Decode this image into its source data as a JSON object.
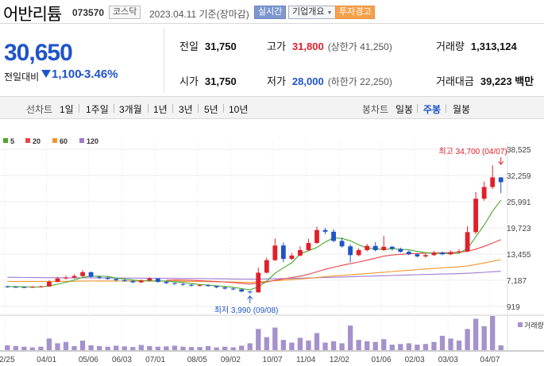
{
  "header": {
    "stock_name": "어반리튬",
    "stock_code": "073570",
    "market": "코스닥",
    "date_note": "2023.04.11 기준(장마감)",
    "live_btn": "실시간",
    "info_btn": "기업개요",
    "warn_badge": "투자경고"
  },
  "price": {
    "current": "30,650",
    "change_label": "전일대비",
    "change": "1,100",
    "change_pct": "-3.46%",
    "fields": {
      "prev": {
        "label": "전일",
        "value": "31,750"
      },
      "high": {
        "label": "고가",
        "value": "31,800",
        "sub": "(상한가 41,250)"
      },
      "volume": {
        "label": "거래량",
        "value": "1,313,124"
      },
      "open": {
        "label": "시가",
        "value": "31,750"
      },
      "low": {
        "label": "저가",
        "value": "28,000",
        "sub": "(하한가 22,250)"
      },
      "amount": {
        "label": "거래대금",
        "value": "39,223 백만"
      }
    }
  },
  "tabs": {
    "line_label": "선차트",
    "line_periods": [
      "1일",
      "1주일",
      "3개월",
      "1년",
      "3년",
      "5년",
      "10년"
    ],
    "candle_label": "봉차트",
    "candle_periods": [
      "일봉",
      "주봉",
      "월봉"
    ],
    "candle_active": "주봉"
  },
  "colors": {
    "up": "#e0202a",
    "down": "#1f54c9",
    "ma5": "#4aa82c",
    "ma20": "#e8464a",
    "ma60": "#f0962e",
    "ma120": "#a07ad0",
    "volume": "#a592cc"
  },
  "chart_data": {
    "type": "candlestick",
    "legend": [
      {
        "name": "5",
        "color": "#4aa82c"
      },
      {
        "name": "20",
        "color": "#e8464a"
      },
      {
        "name": "60",
        "color": "#f0962e"
      },
      {
        "name": "120",
        "color": "#a07ad0"
      }
    ],
    "y_ticks": [
      919,
      7187,
      13455,
      19723,
      25991,
      32259,
      38525
    ],
    "y_tick_labels": [
      "919",
      "7,187",
      "13,455",
      "19,723",
      "25,991",
      "32,259",
      "38,525"
    ],
    "ylim": [
      919,
      38525
    ],
    "x_labels": [
      "02/25",
      "04/01",
      "05/06",
      "06/03",
      "07/01",
      "08/05",
      "09/02",
      "10/07",
      "11/04",
      "12/02",
      "01/06",
      "02/03",
      "03/03",
      "04/07"
    ],
    "max_label": "최고 34,700 (04/07)",
    "min_label": "최저 3,990 (09/08)",
    "max_index": 59,
    "min_index": 29,
    "max_value": 34700,
    "min_value": 3990,
    "volume_label": "거래량",
    "candles": [
      [
        5700,
        5600,
        5900,
        5400
      ],
      [
        5600,
        5550,
        5800,
        5400
      ],
      [
        5550,
        5500,
        5700,
        5300
      ],
      [
        5500,
        5600,
        5800,
        5400
      ],
      [
        5600,
        5700,
        5900,
        5500
      ],
      [
        5700,
        6800,
        7200,
        5600
      ],
      [
        6800,
        7600,
        8000,
        6700
      ],
      [
        7600,
        7800,
        8300,
        7400
      ],
      [
        7800,
        8200,
        8600,
        7600
      ],
      [
        8200,
        9100,
        9600,
        8000
      ],
      [
        9100,
        8000,
        9300,
        7800
      ],
      [
        8000,
        7800,
        8200,
        7500
      ],
      [
        7800,
        7500,
        8000,
        7300
      ],
      [
        7500,
        7200,
        7700,
        6900
      ],
      [
        7200,
        7000,
        7500,
        6800
      ],
      [
        7000,
        6700,
        7200,
        6500
      ],
      [
        6700,
        7100,
        7400,
        6500
      ],
      [
        7100,
        7600,
        7900,
        6900
      ],
      [
        7600,
        6800,
        7700,
        6600
      ],
      [
        6800,
        6500,
        7000,
        6300
      ],
      [
        6500,
        6300,
        6700,
        6100
      ],
      [
        6300,
        6100,
        6500,
        5900
      ],
      [
        6100,
        5900,
        6300,
        5700
      ],
      [
        5900,
        6000,
        6200,
        5700
      ],
      [
        6000,
        5800,
        6200,
        5600
      ],
      [
        5800,
        5500,
        5900,
        5300
      ],
      [
        5500,
        5200,
        5600,
        5000
      ],
      [
        5200,
        5000,
        5400,
        4800
      ],
      [
        5000,
        4500,
        5100,
        4300
      ],
      [
        4500,
        4300,
        4600,
        3990
      ],
      [
        4300,
        9000,
        10200,
        4200
      ],
      [
        9000,
        12000,
        12600,
        8800
      ],
      [
        12000,
        15500,
        17200,
        11800
      ],
      [
        15500,
        12300,
        16200,
        11500
      ],
      [
        12300,
        13100,
        13700,
        12000
      ],
      [
        13100,
        14400,
        15300,
        12900
      ],
      [
        14400,
        16100,
        17100,
        14200
      ],
      [
        16100,
        19200,
        20000,
        15900
      ],
      [
        19200,
        18800,
        19700,
        18200
      ],
      [
        18800,
        16600,
        19400,
        16300
      ],
      [
        16600,
        15300,
        17400,
        15000
      ],
      [
        15300,
        13200,
        15800,
        11500
      ],
      [
        13200,
        14400,
        14800,
        12900
      ],
      [
        14400,
        15400,
        15900,
        14100
      ],
      [
        15400,
        14400,
        16300,
        14100
      ],
      [
        14400,
        15200,
        17800,
        14200
      ],
      [
        15200,
        14700,
        15400,
        14300
      ],
      [
        14700,
        14000,
        15000,
        13800
      ],
      [
        14000,
        13400,
        14300,
        13200
      ],
      [
        13400,
        12900,
        13700,
        12700
      ],
      [
        12900,
        13200,
        13500,
        12600
      ],
      [
        13200,
        13800,
        14200,
        13000
      ],
      [
        13800,
        13400,
        14100,
        13200
      ],
      [
        13400,
        13900,
        14300,
        13200
      ],
      [
        13900,
        14100,
        14600,
        13700
      ],
      [
        14100,
        18700,
        20100,
        13900
      ],
      [
        18700,
        26700,
        28300,
        18200
      ],
      [
        26700,
        29500,
        30800,
        26200
      ],
      [
        29500,
        31800,
        34700,
        29000
      ],
      [
        31800,
        30650,
        31800,
        28000
      ]
    ],
    "volumes": [
      0.14,
      0.12,
      0.1,
      0.08,
      0.1,
      0.34,
      0.2,
      0.24,
      0.12,
      0.28,
      0.14,
      0.12,
      0.1,
      0.13,
      0.11,
      0.09,
      0.15,
      0.12,
      0.1,
      0.11,
      0.13,
      0.1,
      0.09,
      0.09,
      0.12,
      0.08,
      0.1,
      0.08,
      0.13,
      0.2,
      0.62,
      0.38,
      0.66,
      0.3,
      0.22,
      0.36,
      0.28,
      0.5,
      0.22,
      0.26,
      0.2,
      0.72,
      0.3,
      0.26,
      0.24,
      0.32,
      0.16,
      0.18,
      0.2,
      0.16,
      0.18,
      0.24,
      0.42,
      0.34,
      0.28,
      0.62,
      0.92,
      0.7,
      1.0,
      0.14
    ],
    "ma5": [
      5700,
      5650,
      5620,
      5580,
      5590,
      5840,
      6240,
      6700,
      7260,
      7900,
      8140,
      8180,
      8100,
      7700,
      7500,
      7240,
      7100,
      7040,
      7040,
      6980,
      6840,
      6660,
      6380,
      6160,
      6020,
      5850,
      5720,
      5500,
      5200,
      4900,
      5600,
      6960,
      8860,
      10160,
      11380,
      13460,
      14280,
      15020,
      16320,
      17320,
      17200,
      16620,
      15660,
      14900,
      14740,
      14520,
      14740,
      14600,
      14460,
      14100,
      13780,
      13660,
      13550,
      13600,
      13650,
      14800,
      17580,
      20400,
      23700,
      26360
    ],
    "ma20": [
      null,
      null,
      null,
      null,
      null,
      null,
      null,
      null,
      null,
      null,
      null,
      null,
      null,
      null,
      null,
      null,
      null,
      null,
      null,
      7200,
      7260,
      7250,
      7160,
      7070,
      6990,
      6890,
      6760,
      6620,
      6450,
      6270,
      6480,
      6770,
      7200,
      7510,
      7810,
      8180,
      8610,
      9200,
      9800,
      10310,
      10760,
      11150,
      11550,
      12000,
      12470,
      12960,
      13220,
      13400,
      13520,
      13590,
      13680,
      13740,
      13750,
      13820,
      13900,
      14100,
      14640,
      15300,
      16100,
      16900
    ],
    "ma60": [
      6900,
      6900,
      6900,
      6900,
      6900,
      6910,
      6920,
      6930,
      6950,
      6980,
      7000,
      7010,
      7010,
      7000,
      6990,
      6980,
      6980,
      6990,
      6990,
      6980,
      6960,
      6940,
      6910,
      6880,
      6860,
      6830,
      6800,
      6760,
      6720,
      6680,
      6790,
      6920,
      7080,
      7200,
      7330,
      7480,
      7650,
      7850,
      8040,
      8210,
      8350,
      8490,
      8640,
      8790,
      8950,
      9110,
      9270,
      9420,
      9580,
      9730,
      9880,
      10020,
      10150,
      10280,
      10400,
      10620,
      10950,
      11320,
      11720,
      12090
    ],
    "ma120": [
      7900,
      7880,
      7860,
      7840,
      7820,
      7800,
      7790,
      7780,
      7770,
      7760,
      7750,
      7740,
      7730,
      7720,
      7710,
      7700,
      7690,
      7680,
      7670,
      7660,
      7640,
      7620,
      7600,
      7580,
      7560,
      7540,
      7520,
      7500,
      7480,
      7460,
      7480,
      7510,
      7550,
      7590,
      7630,
      7680,
      7730,
      7790,
      7850,
      7910,
      7970,
      8030,
      8090,
      8150,
      8210,
      8270,
      8330,
      8390,
      8450,
      8510,
      8570,
      8630,
      8680,
      8730,
      8780,
      8860,
      8960,
      9080,
      9210,
      9340
    ]
  }
}
